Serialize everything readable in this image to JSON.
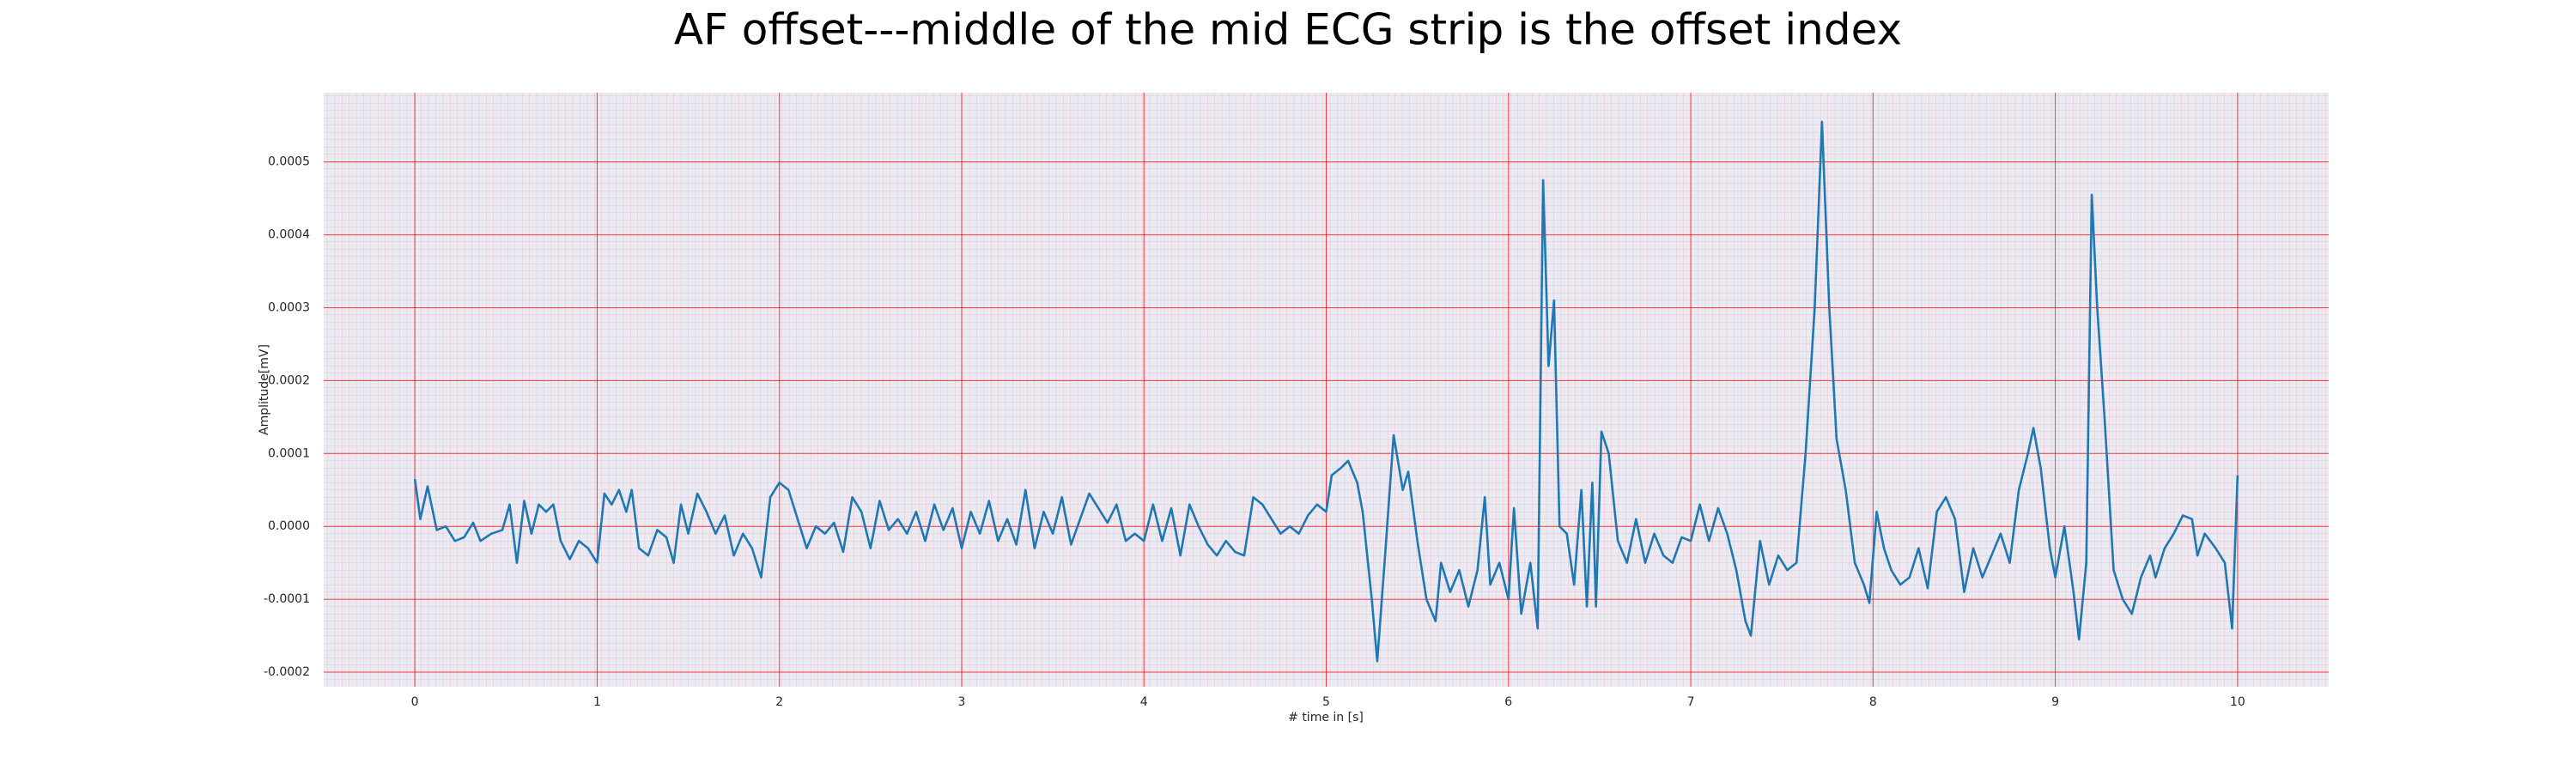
{
  "chart_data": {
    "type": "line",
    "title": "AF offset---middle of the mid ECG strip is the offset index",
    "xlabel": "# time in [s]",
    "ylabel": "Amplitude[mV]",
    "color": "#1f77b4",
    "grid": true,
    "grid_color": "#ff0000",
    "xlim": [
      -0.5,
      10.5
    ],
    "ylim": [
      -0.00022,
      0.000595
    ],
    "xticks": [
      0,
      1,
      2,
      3,
      4,
      5,
      6,
      7,
      8,
      9,
      10
    ],
    "yticks": [
      -0.0002,
      -0.0001,
      {
        "value": 0,
        "label": "0.0000"
      },
      0.0001,
      0.0002,
      0.0003,
      0.0004,
      0.0005
    ],
    "x": [
      0.0,
      0.03,
      0.07,
      0.12,
      0.17,
      0.22,
      0.27,
      0.32,
      0.36,
      0.42,
      0.48,
      0.52,
      0.56,
      0.6,
      0.64,
      0.68,
      0.72,
      0.76,
      0.8,
      0.85,
      0.9,
      0.95,
      1.0,
      1.04,
      1.08,
      1.12,
      1.16,
      1.19,
      1.23,
      1.28,
      1.33,
      1.38,
      1.42,
      1.46,
      1.5,
      1.55,
      1.6,
      1.65,
      1.7,
      1.75,
      1.8,
      1.85,
      1.9,
      1.95,
      2.0,
      2.05,
      2.1,
      2.15,
      2.2,
      2.25,
      2.3,
      2.35,
      2.4,
      2.45,
      2.5,
      2.55,
      2.6,
      2.65,
      2.7,
      2.75,
      2.8,
      2.85,
      2.9,
      2.95,
      3.0,
      3.05,
      3.1,
      3.15,
      3.2,
      3.25,
      3.3,
      3.35,
      3.4,
      3.45,
      3.5,
      3.55,
      3.6,
      3.65,
      3.7,
      3.75,
      3.8,
      3.85,
      3.9,
      3.95,
      4.0,
      4.05,
      4.1,
      4.15,
      4.2,
      4.25,
      4.3,
      4.35,
      4.4,
      4.45,
      4.5,
      4.55,
      4.6,
      4.65,
      4.7,
      4.75,
      4.8,
      4.85,
      4.9,
      4.95,
      5.0,
      5.03,
      5.08,
      5.12,
      5.17,
      5.2,
      5.25,
      5.28,
      5.32,
      5.37,
      5.42,
      5.45,
      5.5,
      5.55,
      5.6,
      5.63,
      5.68,
      5.73,
      5.78,
      5.83,
      5.87,
      5.9,
      5.95,
      6.0,
      6.03,
      6.07,
      6.12,
      6.16,
      6.19,
      6.22,
      6.25,
      6.28,
      6.32,
      6.36,
      6.4,
      6.43,
      6.46,
      6.48,
      6.51,
      6.55,
      6.6,
      6.65,
      6.7,
      6.75,
      6.8,
      6.85,
      6.9,
      6.95,
      7.0,
      7.05,
      7.1,
      7.15,
      7.2,
      7.25,
      7.3,
      7.33,
      7.38,
      7.43,
      7.48,
      7.53,
      7.58,
      7.63,
      7.68,
      7.72,
      7.76,
      7.8,
      7.85,
      7.9,
      7.95,
      7.98,
      8.02,
      8.06,
      8.1,
      8.15,
      8.2,
      8.25,
      8.3,
      8.35,
      8.4,
      8.45,
      8.5,
      8.55,
      8.6,
      8.65,
      8.7,
      8.75,
      8.8,
      8.85,
      8.88,
      8.92,
      8.97,
      9.0,
      9.05,
      9.1,
      9.13,
      9.17,
      9.2,
      9.23,
      9.27,
      9.32,
      9.37,
      9.42,
      9.47,
      9.52,
      9.55,
      9.6,
      9.65,
      9.7,
      9.75,
      9.78,
      9.82,
      9.88,
      9.93,
      9.97,
      10.0
    ],
    "values": [
      6.5e-05,
      1e-05,
      5.5e-05,
      -5e-06,
      0,
      -2e-05,
      -1.5e-05,
      5e-06,
      -2e-05,
      -1e-05,
      -5e-06,
      3e-05,
      -5e-05,
      3.5e-05,
      -1e-05,
      3e-05,
      2e-05,
      3e-05,
      -2e-05,
      -4.5e-05,
      -2e-05,
      -3e-05,
      -5e-05,
      4.5e-05,
      3e-05,
      5e-05,
      2e-05,
      5e-05,
      -3e-05,
      -4e-05,
      -5e-06,
      -1.5e-05,
      -5e-05,
      3e-05,
      -1e-05,
      4.5e-05,
      2e-05,
      -1e-05,
      1.5e-05,
      -4e-05,
      -1e-05,
      -3e-05,
      -7e-05,
      4e-05,
      6e-05,
      5e-05,
      1e-05,
      -3e-05,
      0,
      -1e-05,
      5e-06,
      -3.5e-05,
      4e-05,
      2e-05,
      -3e-05,
      3.5e-05,
      -5e-06,
      1e-05,
      -1e-05,
      2e-05,
      -2e-05,
      3e-05,
      -5e-06,
      2.5e-05,
      -3e-05,
      2e-05,
      -1e-05,
      3.5e-05,
      -2e-05,
      1e-05,
      -2.5e-05,
      5e-05,
      -3e-05,
      2e-05,
      -1e-05,
      4e-05,
      -2.5e-05,
      1e-05,
      4.5e-05,
      2.5e-05,
      5e-06,
      3e-05,
      -2e-05,
      -1e-05,
      -2e-05,
      3e-05,
      -2e-05,
      2.5e-05,
      -4e-05,
      3e-05,
      0,
      -2.5e-05,
      -4e-05,
      -2e-05,
      -3.5e-05,
      -4e-05,
      4e-05,
      3e-05,
      1e-05,
      -1e-05,
      0,
      -1e-05,
      1.5e-05,
      3e-05,
      2e-05,
      7e-05,
      8e-05,
      9e-05,
      6e-05,
      2e-05,
      -0.0001,
      -0.000185,
      -5e-05,
      0.000125,
      5e-05,
      7.5e-05,
      -2e-05,
      -0.0001,
      -0.00013,
      -5e-05,
      -9e-05,
      -6e-05,
      -0.00011,
      -6e-05,
      4e-05,
      -8e-05,
      -5e-05,
      -0.0001,
      2.5e-05,
      -0.00012,
      -5e-05,
      -0.00014,
      0.000475,
      0.00022,
      0.00031,
      0,
      -1e-05,
      -8e-05,
      5e-05,
      -0.00011,
      6e-05,
      -0.00011,
      0.00013,
      0.0001,
      -2e-05,
      -5e-05,
      1e-05,
      -5e-05,
      -1e-05,
      -4e-05,
      -5e-05,
      -1.5e-05,
      -2e-05,
      3e-05,
      -2e-05,
      2.5e-05,
      -1e-05,
      -6e-05,
      -0.00013,
      -0.00015,
      -2e-05,
      -8e-05,
      -4e-05,
      -6e-05,
      -5e-05,
      0.0001,
      0.0003,
      0.000555,
      0.0003,
      0.00012,
      5e-05,
      -5e-05,
      -8e-05,
      -0.000105,
      2e-05,
      -3e-05,
      -6e-05,
      -8e-05,
      -7e-05,
      -3e-05,
      -8.5e-05,
      2e-05,
      4e-05,
      1e-05,
      -9e-05,
      -3e-05,
      -7e-05,
      -4e-05,
      -1e-05,
      -5e-05,
      5e-05,
      0.0001,
      0.000135,
      8e-05,
      -3e-05,
      -7e-05,
      0,
      -9e-05,
      -0.000155,
      -5e-05,
      0.000455,
      0.0003,
      0.00015,
      -6e-05,
      -0.0001,
      -0.00012,
      -7e-05,
      -4e-05,
      -7e-05,
      -3e-05,
      -1e-05,
      1.5e-05,
      1e-05,
      -4e-05,
      -1e-05,
      -3e-05,
      -5e-05,
      -0.00014,
      7e-05
    ]
  }
}
